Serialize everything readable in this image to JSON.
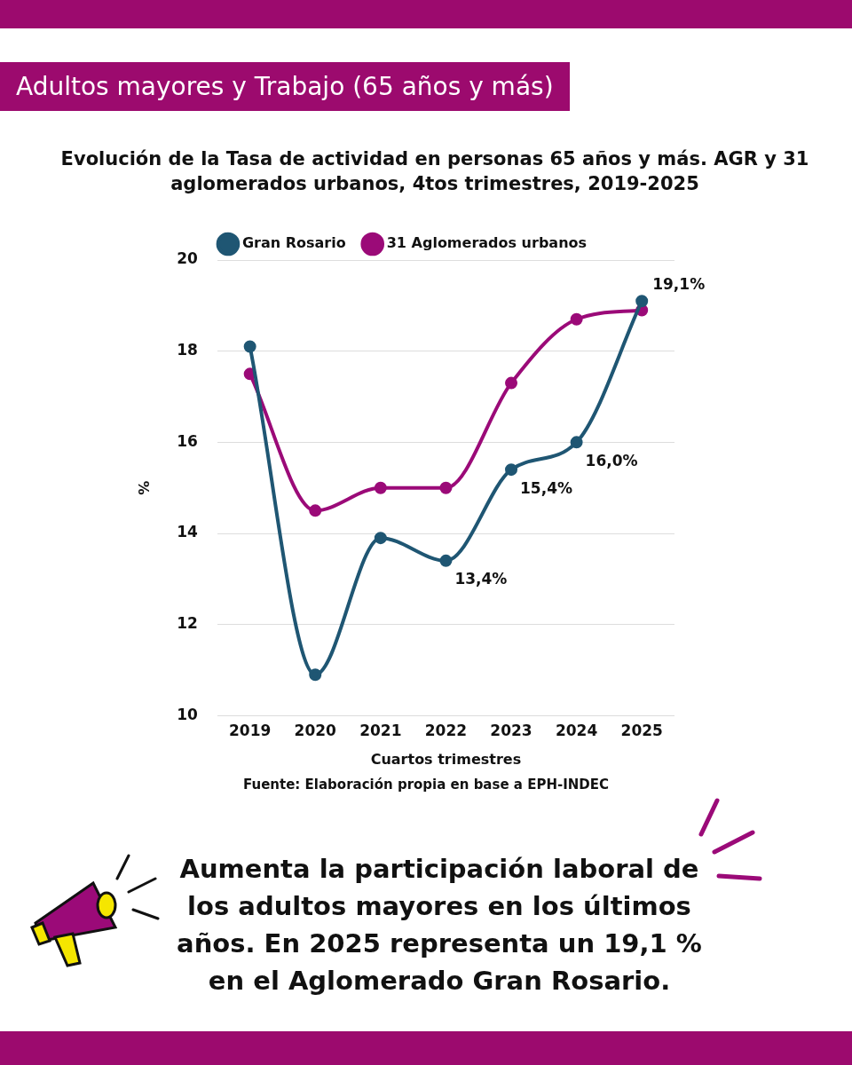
{
  "chart_data": {
    "type": "line",
    "title": "Adultos mayores y Trabajo (65 años y más)",
    "subtitle": "Evolución de la Tasa de actividad en personas 65 años y más. AGR y 31 aglomerados urbanos, 4tos trimestres, 2019-2025",
    "xlabel": "Cuartos trimestres",
    "ylabel": "%",
    "categories": [
      "2019",
      "2020",
      "2021",
      "2022",
      "2023",
      "2024",
      "2025"
    ],
    "series": [
      {
        "name": "Gran Rosario",
        "color": "#1f5673",
        "values": [
          18.1,
          10.9,
          13.9,
          13.4,
          15.4,
          16.0,
          19.1
        ],
        "value_labels": [
          null,
          null,
          null,
          "13,4%",
          "15,4%",
          "16,0%",
          "19,1%"
        ]
      },
      {
        "name": "31 Aglomerados urbanos",
        "color": "#9b0a78",
        "values": [
          17.5,
          14.5,
          15.0,
          15.0,
          17.3,
          18.7,
          18.9
        ]
      }
    ],
    "ylim": [
      10,
      20
    ],
    "yticks": [
      10,
      12,
      14,
      16,
      18,
      20
    ],
    "grid": "y",
    "legend": "top",
    "marker": "circle",
    "line_style": "solid",
    "annotations": [
      "Fuente: Elaboración propia en base a EPH-INDEC",
      "Aumenta la participación laboral de los adultos mayores en los últimos años. En 2025 representa un 19,1 % en el Aglomerado Gran Rosario."
    ]
  }
}
